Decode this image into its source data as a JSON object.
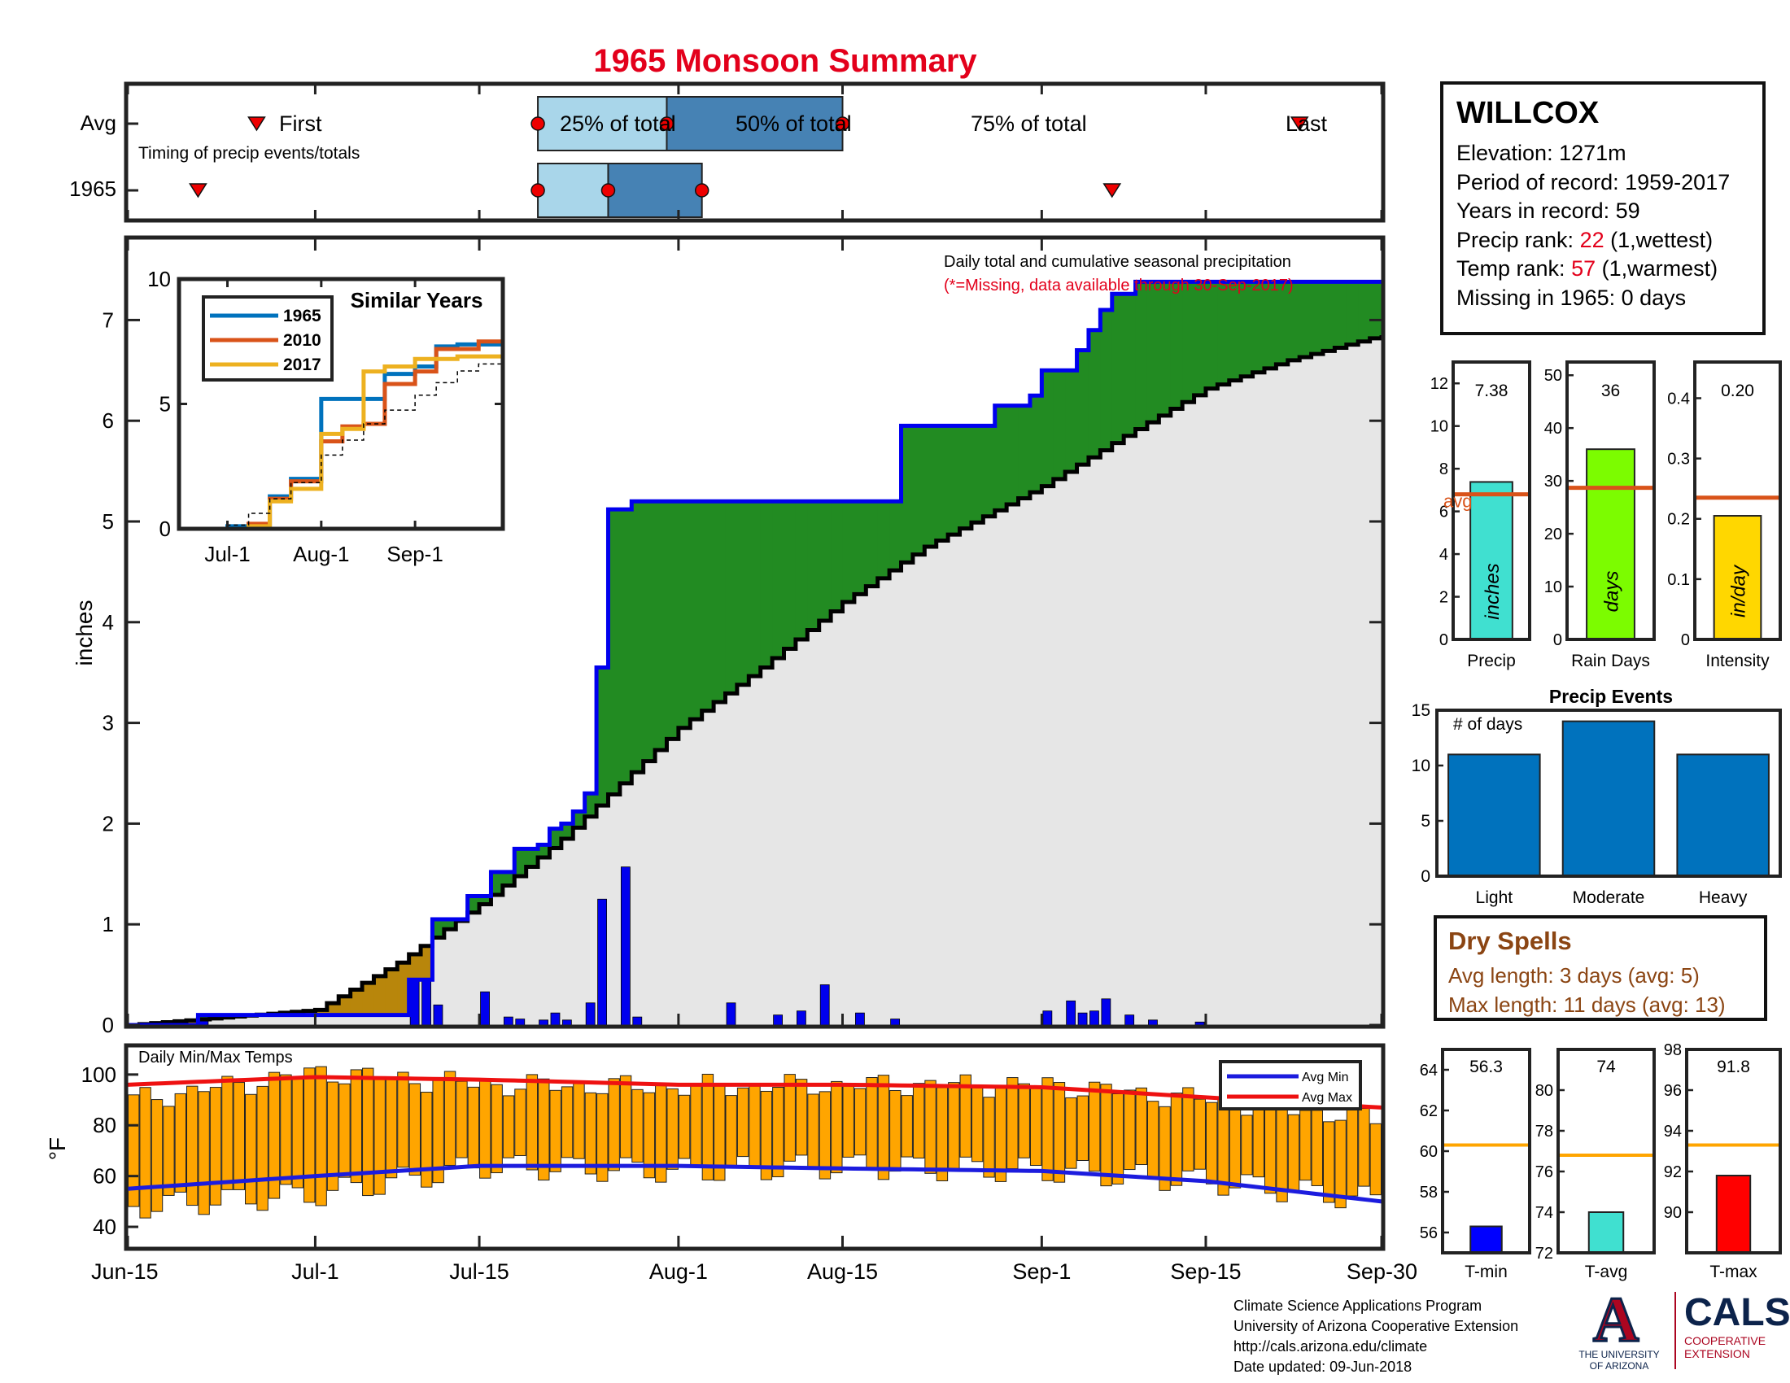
{
  "title": "1965 Monsoon Summary",
  "colors": {
    "title": "#e3001b",
    "obs_line": "#0000ee",
    "surplus": "#228b22",
    "deficit": "#b8860b",
    "avg_fill": "#e6e6e6",
    "daily_bar": "#0000ee",
    "temp_bar": "#ffa500",
    "avg_min": "#1c1cde",
    "avg_max": "#ee1111",
    "light_box": "#a9d6ea",
    "dark_box": "#4682b4"
  },
  "timing": {
    "row_labels": [
      "Avg",
      "1965"
    ],
    "first_label": "First",
    "last_label": "Last",
    "q_labels": [
      "25% of total",
      "50% of total",
      "75% of total"
    ],
    "note": "Timing of precip events/totals",
    "avg": {
      "first": "Jun-26",
      "p25": "Jul-20",
      "p50": "Jul-31",
      "p75": "Aug-15",
      "last": "Sep-23"
    },
    "year": {
      "first": "Jun-21",
      "p25": "Jul-20",
      "p50": "Jul-26",
      "p75": "Aug-03",
      "last": "Sep-07"
    }
  },
  "main_chart": {
    "header_line1": "Daily total and cumulative seasonal precipitation",
    "header_line2": "(*=Missing, data available through 30-Sep-2017)",
    "ylabel": "inches",
    "yticks": [
      "0",
      "1",
      "2",
      "3",
      "4",
      "5",
      "6",
      "7"
    ],
    "xticks": [
      "Jun-15",
      "Jul-1",
      "Jul-15",
      "Aug-1",
      "Aug-15",
      "Sep-1",
      "Sep-15",
      "Sep-30"
    ]
  },
  "inset": {
    "title": "Similar Years",
    "yticks": [
      "0",
      "5",
      "10"
    ],
    "xticks": [
      "Jul-1",
      "Aug-1",
      "Sep-1"
    ],
    "legend": [
      "1965",
      "2010",
      "2017"
    ],
    "colors": [
      "#0072bd",
      "#d95319",
      "#edb120"
    ]
  },
  "temps": {
    "label": "Daily Min/Max Temps",
    "ylabel": "°F",
    "yticks": [
      "40",
      "60",
      "80",
      "100"
    ],
    "legend": [
      "Avg Min",
      "Avg Max"
    ]
  },
  "station": {
    "name": "WILLCOX",
    "elevation": "Elevation: 1271m",
    "period": "Period of record: 1959-2017",
    "years": "Years in record: 59",
    "precip_rank_label": "Precip rank: ",
    "precip_rank": "22",
    "precip_rank_note": " (1,wettest)",
    "temp_rank_label": "Temp rank: ",
    "temp_rank": "57",
    "temp_rank_note": " (1,warmest)",
    "missing": "Missing in 1965: 0 days"
  },
  "small_bars": [
    {
      "label": "Precip",
      "value_text": "7.38",
      "value": 7.38,
      "avg": 6.8,
      "unit": "inches",
      "avg_label": "avg",
      "ymax": 13,
      "yticks": [
        "0",
        "2",
        "4",
        "6",
        "8",
        "10",
        "12"
      ],
      "tickvals": [
        0,
        2,
        4,
        6,
        8,
        10,
        12
      ],
      "color": "#40e0d0"
    },
    {
      "label": "Rain Days",
      "value_text": "36",
      "value": 36,
      "avg": 28.7,
      "unit": "days",
      "ymax": 52.5,
      "yticks": [
        "0",
        "10",
        "20",
        "30",
        "40",
        "50"
      ],
      "tickvals": [
        0,
        10,
        20,
        30,
        40,
        50
      ],
      "color": "#7cfc00"
    },
    {
      "label": "Intensity",
      "value_text": "0.20",
      "value": 0.205,
      "avg": 0.235,
      "unit": "in/day",
      "ymax": 0.46,
      "yticks": [
        "0",
        "0.1",
        "0.2",
        "0.3",
        "0.4"
      ],
      "tickvals": [
        0,
        0.1,
        0.2,
        0.3,
        0.4
      ],
      "color": "#ffd700"
    }
  ],
  "precip_events": {
    "title": "Precip Events",
    "note": "# of days",
    "categories": [
      "Light",
      "Moderate",
      "Heavy"
    ],
    "values": [
      11,
      14,
      11
    ],
    "yticks": [
      "0",
      "5",
      "10",
      "15"
    ]
  },
  "dry_spells": {
    "title": "Dry Spells",
    "avg_length": "Avg length: 3 days (avg: 5)",
    "max_length": "Max length: 11 days (avg: 13)"
  },
  "temp_bars": [
    {
      "label": "T-min",
      "value_text": "56.3",
      "value": 56.3,
      "avg": 60.3,
      "ymin": 55,
      "ymax": 65,
      "yticks": [
        "56",
        "58",
        "60",
        "62",
        "64"
      ],
      "tickvals": [
        56,
        58,
        60,
        62,
        64
      ],
      "color": "#0000ff"
    },
    {
      "label": "T-avg",
      "value_text": "74",
      "value": 74,
      "avg": 76.8,
      "ymin": 72,
      "ymax": 82,
      "yticks": [
        "72",
        "74",
        "76",
        "78",
        "80"
      ],
      "tickvals": [
        72,
        74,
        76,
        78,
        80
      ],
      "color": "#40e0d0"
    },
    {
      "label": "T-max",
      "value_text": "91.8",
      "value": 91.8,
      "avg": 93.3,
      "ymin": 88,
      "ymax": 98,
      "yticks": [
        "90",
        "92",
        "94",
        "96",
        "98"
      ],
      "tickvals": [
        90,
        92,
        94,
        96,
        98
      ],
      "color": "#ff0000"
    }
  ],
  "credits": {
    "line1": "Climate Science Applications Program",
    "line2": "University of Arizona Cooperative Extension",
    "line3": "http://cals.arizona.edu/climate",
    "line4": " Date updated: 09-Jun-2018"
  },
  "logos": {
    "ua_letter": "A",
    "ua_line1": "THE UNIVERSITY",
    "ua_line2": "OF ARIZONA",
    "cals": "CALS",
    "cals_line1": "COOPERATIVE",
    "cals_line2": "EXTENSION"
  },
  "chart_data": [
    {
      "type": "area",
      "title": "Daily total and cumulative seasonal precipitation",
      "ylabel": "inches",
      "ylim": [
        0,
        7.8
      ],
      "series": [
        {
          "name": "1965",
          "x": [
            "Jun-15",
            "Jun-21",
            "Jul-8",
            "Jul-9",
            "Jul-11",
            "Jul-14",
            "Jul-16",
            "Jul-18",
            "Jul-20",
            "Jul-21",
            "Jul-22",
            "Jul-23",
            "Jul-24",
            "Jul-25",
            "Jul-26",
            "Jul-28",
            "Jul-29",
            "Jul-31",
            "Aug-4",
            "Aug-9",
            "Aug-16",
            "Aug-17",
            "Aug-20",
            "Aug-28",
            "Aug-31",
            "Sep-1",
            "Sep-4",
            "Sep-5",
            "Sep-6",
            "Sep-7",
            "Sep-9",
            "Sep-30"
          ],
          "y": [
            0,
            0.1,
            0.1,
            0.45,
            1.05,
            1.28,
            1.52,
            1.75,
            1.79,
            1.95,
            2.0,
            2.12,
            2.3,
            3.55,
            5.12,
            5.2,
            5.2,
            5.2,
            5.2,
            5.2,
            5.2,
            5.2,
            5.95,
            6.15,
            6.25,
            6.5,
            6.7,
            6.9,
            7.1,
            7.26,
            7.38,
            7.38
          ]
        },
        {
          "name": "Avg",
          "x": [
            "Jun-15",
            "Jul-1",
            "Jul-8",
            "Jul-15",
            "Jul-22",
            "Aug-1",
            "Aug-8",
            "Aug-15",
            "Aug-22",
            "Sep-1",
            "Sep-8",
            "Sep-15",
            "Sep-22",
            "Sep-30"
          ],
          "y": [
            0,
            0.15,
            0.62,
            1.2,
            1.85,
            2.95,
            3.55,
            4.2,
            4.75,
            5.35,
            5.85,
            6.32,
            6.6,
            6.85
          ]
        }
      ],
      "daily_x": [
        "Jun-21",
        "Jul-9",
        "Jul-10",
        "Jul-11",
        "Jul-15",
        "Jul-17",
        "Jul-18",
        "Jul-20",
        "Jul-21",
        "Jul-22",
        "Jul-24",
        "Jul-25",
        "Jul-27",
        "Jul-28",
        "Aug-5",
        "Aug-9",
        "Aug-11",
        "Aug-13",
        "Aug-16",
        "Aug-19",
        "Sep-1",
        "Sep-3",
        "Sep-4",
        "Sep-5",
        "Sep-6",
        "Sep-8",
        "Sep-10",
        "Sep-14"
      ],
      "daily_y": [
        0.05,
        0.45,
        0.45,
        0.2,
        0.33,
        0.08,
        0.06,
        0.05,
        0.12,
        0.05,
        0.22,
        1.25,
        1.57,
        0.08,
        0.22,
        0.1,
        0.14,
        0.4,
        0.12,
        0.06,
        0.14,
        0.24,
        0.12,
        0.14,
        0.26,
        0.1,
        0.05,
        0.03
      ]
    },
    {
      "type": "line",
      "title": "Similar Years",
      "ylim": [
        0,
        10
      ],
      "x": [
        "Jun-15",
        "Jul-1",
        "Jul-8",
        "Jul-15",
        "Jul-22",
        "Aug-1",
        "Aug-8",
        "Aug-15",
        "Aug-22",
        "Sep-1",
        "Sep-8",
        "Sep-15",
        "Sep-22",
        "Sep-30"
      ],
      "series": [
        {
          "name": "1965",
          "values": [
            0,
            0.1,
            0.1,
            1.3,
            2.0,
            5.2,
            5.2,
            5.2,
            6.2,
            6.5,
            7.3,
            7.38,
            7.38,
            7.38
          ]
        },
        {
          "name": "2010",
          "values": [
            0,
            0,
            0.2,
            1.2,
            1.9,
            3.5,
            4.1,
            4.2,
            5.8,
            6.3,
            7.2,
            7.2,
            7.5,
            8.1
          ]
        },
        {
          "name": "2017",
          "values": [
            0,
            0,
            0.1,
            1.1,
            1.6,
            3.8,
            4.0,
            6.3,
            6.5,
            6.8,
            6.8,
            6.9,
            6.9,
            7.0
          ]
        },
        {
          "name": "",
          "values": [
            0,
            0.15,
            0.62,
            1.2,
            1.85,
            2.95,
            3.55,
            4.2,
            4.75,
            5.35,
            5.85,
            6.32,
            6.6,
            6.85
          ]
        }
      ]
    },
    {
      "type": "bar",
      "title": "Daily Min/Max Temps",
      "ylabel": "°F",
      "ylim": [
        32,
        108
      ],
      "x": [
        "Jun-15",
        "Jul-1",
        "Jul-15",
        "Aug-1",
        "Aug-15",
        "Sep-1",
        "Sep-15",
        "Sep-30"
      ],
      "series": [
        {
          "name": "Max",
          "values": [
            90,
            101,
            96,
            95,
            96,
            96,
            90,
            82
          ]
        },
        {
          "name": "Min",
          "values": [
            48,
            53,
            64,
            62,
            64,
            62,
            58,
            50
          ]
        },
        {
          "name": "Avg Max",
          "values": [
            96,
            99,
            98,
            96,
            96,
            95,
            91,
            87
          ]
        },
        {
          "name": "Avg Min",
          "values": [
            55,
            60,
            64,
            64,
            63,
            62,
            58,
            50
          ]
        }
      ]
    },
    {
      "type": "bar",
      "title": "Precip Events",
      "categories": [
        "Light",
        "Moderate",
        "Heavy"
      ],
      "values": [
        11,
        14,
        11
      ],
      "ylim": [
        0,
        15
      ]
    }
  ]
}
